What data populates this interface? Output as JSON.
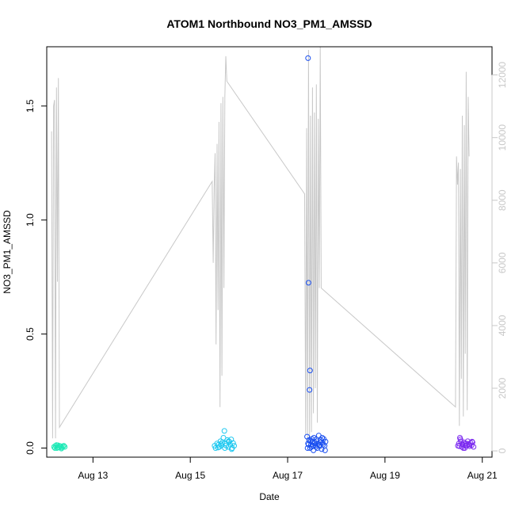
{
  "chart_data": {
    "type": "scatter",
    "title": "ATOM1 Northbound NO3_PM1_AMSSD",
    "xlabel": "Date",
    "ylabel": "NO3_PM1_AMSSD",
    "x_ticks": [
      "Aug 13",
      "Aug 15",
      "Aug 17",
      "Aug 19",
      "Aug 21"
    ],
    "x_tick_days": [
      13,
      15,
      17,
      19,
      21
    ],
    "xlim": [
      12.05,
      21.2
    ],
    "ylim": [
      -0.04,
      1.76
    ],
    "y_ticks": [
      0.0,
      0.5,
      1.0,
      1.5
    ],
    "y_tick_labels": [
      "0.0",
      "0.5",
      "1.0",
      "1.5"
    ],
    "y2lim": [
      -200,
      12900
    ],
    "y2_ticks": [
      0,
      2000,
      4000,
      6000,
      8000,
      10000,
      12000
    ],
    "y2_tick_labels": [
      "0",
      "2000",
      "4000",
      "6000",
      "8000",
      "10000",
      "12000"
    ],
    "colors": {
      "cluster1": "#1de9b6",
      "cluster2": "#1ec8f0",
      "cluster3": "#1a4ff0",
      "cluster4": "#7d2cf0",
      "secondary_line": "#c8c8c8"
    },
    "scatter_series": [
      {
        "color_key": "cluster1",
        "points": [
          [
            12.2,
            0.005
          ],
          [
            12.23,
            0.01
          ],
          [
            12.26,
            0.0
          ],
          [
            12.28,
            0.012
          ],
          [
            12.3,
            0.003
          ],
          [
            12.33,
            0.008
          ],
          [
            12.35,
            -0.002
          ],
          [
            12.38,
            0.006
          ],
          [
            12.4,
            0.01
          ],
          [
            12.22,
            0.0
          ],
          [
            12.27,
            0.004
          ],
          [
            12.32,
            0.009
          ],
          [
            12.36,
            0.002
          ],
          [
            12.42,
            0.005
          ],
          [
            12.25,
            0.013
          ]
        ]
      },
      {
        "color_key": "cluster2",
        "points": [
          [
            15.5,
            0.01
          ],
          [
            15.52,
            0.0
          ],
          [
            15.55,
            0.02
          ],
          [
            15.58,
            0.015
          ],
          [
            15.6,
            0.005
          ],
          [
            15.62,
            0.03
          ],
          [
            15.64,
            0.012
          ],
          [
            15.66,
            0.025
          ],
          [
            15.68,
            0.045
          ],
          [
            15.7,
            0.075
          ],
          [
            15.72,
            0.02
          ],
          [
            15.74,
            0.01
          ],
          [
            15.76,
            0.035
          ],
          [
            15.78,
            0.005
          ],
          [
            15.8,
            0.028
          ],
          [
            15.82,
            0.015
          ],
          [
            15.84,
            0.038
          ],
          [
            15.86,
            0.0
          ],
          [
            15.88,
            0.022
          ],
          [
            15.9,
            0.01
          ],
          [
            15.57,
            0.002
          ],
          [
            15.63,
            0.018
          ],
          [
            15.71,
            0.0
          ],
          [
            15.79,
            0.03
          ],
          [
            15.85,
            -0.005
          ]
        ]
      },
      {
        "color_key": "cluster3",
        "points": [
          [
            17.42,
            1.71
          ],
          [
            17.43,
            0.725
          ],
          [
            17.46,
            0.34
          ],
          [
            17.45,
            0.255
          ],
          [
            17.4,
            0.05
          ],
          [
            17.42,
            0.02
          ],
          [
            17.44,
            0.035
          ],
          [
            17.46,
            0.0
          ],
          [
            17.48,
            0.015
          ],
          [
            17.5,
            0.04
          ],
          [
            17.52,
            0.01
          ],
          [
            17.54,
            0.045
          ],
          [
            17.56,
            0.025
          ],
          [
            17.58,
            0.005
          ],
          [
            17.6,
            0.03
          ],
          [
            17.62,
            0.018
          ],
          [
            17.64,
            0.055
          ],
          [
            17.66,
            0.008
          ],
          [
            17.68,
            0.035
          ],
          [
            17.7,
            -0.005
          ],
          [
            17.72,
            0.022
          ],
          [
            17.74,
            0.04
          ],
          [
            17.76,
            0.01
          ],
          [
            17.78,
            0.028
          ],
          [
            17.41,
            0.0
          ],
          [
            17.47,
            0.03
          ],
          [
            17.53,
            -0.01
          ],
          [
            17.59,
            0.038
          ],
          [
            17.65,
            0.012
          ],
          [
            17.71,
            0.045
          ],
          [
            17.43,
            0.015
          ],
          [
            17.49,
            0.005
          ],
          [
            17.55,
            0.02
          ],
          [
            17.61,
            0.0
          ],
          [
            17.67,
            0.025
          ],
          [
            17.73,
            0.015
          ],
          [
            17.77,
            -0.01
          ],
          [
            17.51,
            0.03
          ],
          [
            17.57,
            0.012
          ]
        ]
      },
      {
        "color_key": "cluster4",
        "points": [
          [
            20.5,
            0.01
          ],
          [
            20.52,
            0.02
          ],
          [
            20.54,
            0.045
          ],
          [
            20.56,
            0.03
          ],
          [
            20.58,
            0.005
          ],
          [
            20.6,
            0.015
          ],
          [
            20.62,
            0.025
          ],
          [
            20.64,
            0.0
          ],
          [
            20.66,
            0.02
          ],
          [
            20.68,
            0.01
          ],
          [
            20.7,
            0.03
          ],
          [
            20.72,
            0.018
          ],
          [
            20.74,
            0.008
          ],
          [
            20.76,
            0.022
          ],
          [
            20.78,
            0.012
          ],
          [
            20.8,
            0.025
          ],
          [
            20.82,
            0.005
          ],
          [
            20.55,
            0.038
          ],
          [
            20.61,
            0.0
          ],
          [
            20.67,
            0.02
          ],
          [
            20.73,
            0.015
          ],
          [
            20.79,
            0.028
          ],
          [
            20.53,
            0.008
          ],
          [
            20.59,
            0.018
          ],
          [
            20.65,
            0.01
          ]
        ]
      }
    ],
    "line_series": {
      "axis": "right",
      "color_key": "secondary_line",
      "points": [
        [
          12.15,
          10200
        ],
        [
          12.17,
          400
        ],
        [
          12.19,
          11000
        ],
        [
          12.21,
          11200
        ],
        [
          12.23,
          400
        ],
        [
          12.25,
          11600
        ],
        [
          12.27,
          5400
        ],
        [
          12.29,
          11900
        ],
        [
          12.31,
          750
        ],
        [
          15.45,
          8600
        ],
        [
          15.47,
          6000
        ],
        [
          15.49,
          8400
        ],
        [
          15.51,
          9500
        ],
        [
          15.53,
          3400
        ],
        [
          15.55,
          9800
        ],
        [
          15.57,
          4500
        ],
        [
          15.59,
          10500
        ],
        [
          15.61,
          1400
        ],
        [
          15.63,
          11100
        ],
        [
          15.65,
          2400
        ],
        [
          15.67,
          11300
        ],
        [
          15.69,
          5200
        ],
        [
          15.71,
          11300
        ],
        [
          15.73,
          12600
        ],
        [
          15.75,
          11800
        ],
        [
          17.35,
          8200
        ],
        [
          17.37,
          500
        ],
        [
          17.39,
          10300
        ],
        [
          17.41,
          300
        ],
        [
          17.43,
          12800
        ],
        [
          17.45,
          400
        ],
        [
          17.47,
          10700
        ],
        [
          17.49,
          600
        ],
        [
          17.51,
          11600
        ],
        [
          17.53,
          1200
        ],
        [
          17.55,
          10800
        ],
        [
          17.57,
          2000
        ],
        [
          17.59,
          11700
        ],
        [
          17.61,
          900
        ],
        [
          17.63,
          10600
        ],
        [
          17.65,
          5200
        ],
        [
          17.67,
          12900
        ],
        [
          17.69,
          5200
        ],
        [
          20.45,
          1400
        ],
        [
          20.47,
          9400
        ],
        [
          20.49,
          8500
        ],
        [
          20.51,
          9200
        ],
        [
          20.53,
          800
        ],
        [
          20.55,
          9000
        ],
        [
          20.57,
          2300
        ],
        [
          20.59,
          10700
        ],
        [
          20.61,
          1100
        ],
        [
          20.63,
          10400
        ],
        [
          20.65,
          3100
        ],
        [
          20.67,
          12100
        ],
        [
          20.69,
          1300
        ],
        [
          20.71,
          11300
        ],
        [
          20.73,
          9400
        ]
      ]
    }
  }
}
